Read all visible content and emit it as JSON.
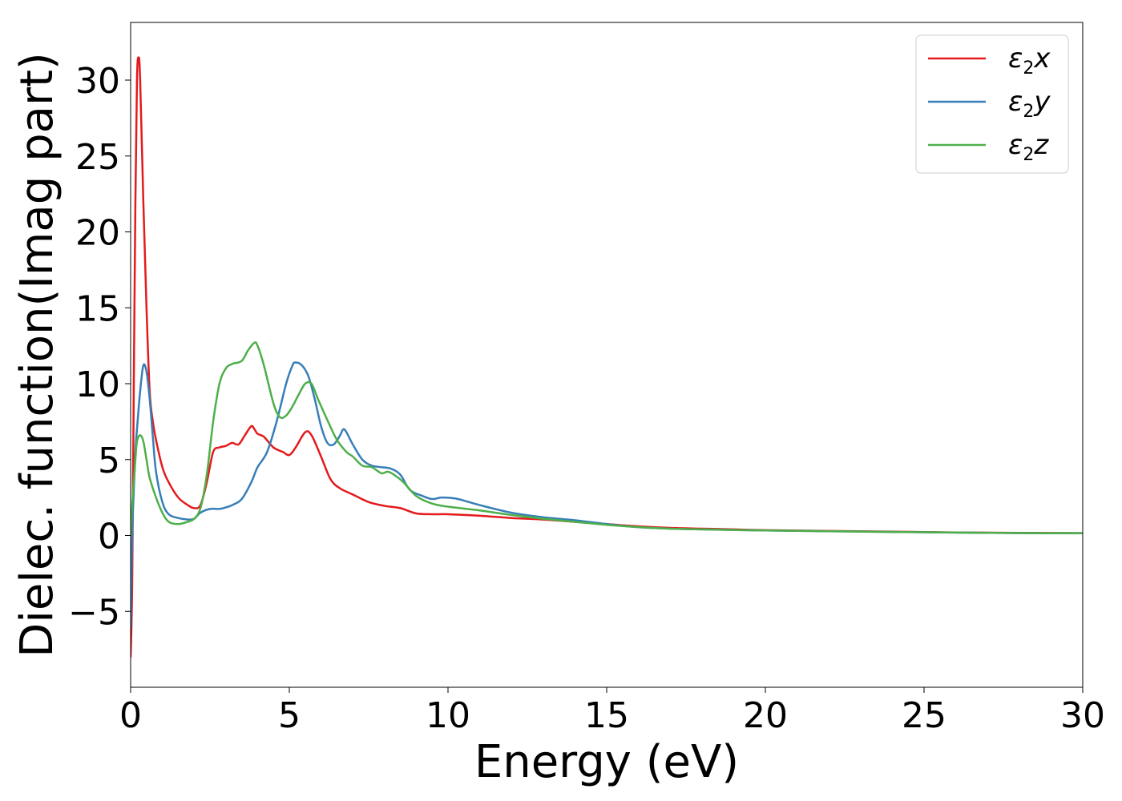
{
  "chart_data": {
    "type": "line",
    "title": "",
    "xlabel": "Energy (eV)",
    "ylabel": "Dielec. function(Imag part)",
    "xlim": [
      0,
      30
    ],
    "ylim": [
      -10,
      33.8
    ],
    "xticks": [
      0,
      5,
      10,
      15,
      20,
      25,
      30
    ],
    "xtick_labels": [
      "0",
      "5",
      "10",
      "15",
      "20",
      "25",
      "30"
    ],
    "yticks": [
      -5,
      0,
      5,
      10,
      15,
      20,
      25,
      30
    ],
    "ytick_labels": [
      "−5",
      "0",
      "5",
      "10",
      "15",
      "20",
      "25",
      "30"
    ],
    "grid": false,
    "legend_position": "top-right",
    "series": [
      {
        "name": "ε2x",
        "legend_base": "ε",
        "legend_sub": "2",
        "legend_var": "x",
        "color": "#e41a1c",
        "x": [
          0,
          0.05,
          0.1,
          0.15,
          0.2,
          0.25,
          0.3,
          0.4,
          0.5,
          0.6,
          0.7,
          0.8,
          1.0,
          1.2,
          1.5,
          1.8,
          2.0,
          2.2,
          2.4,
          2.6,
          2.8,
          3.0,
          3.2,
          3.4,
          3.6,
          3.8,
          3.9,
          4.0,
          4.2,
          4.5,
          4.8,
          5.0,
          5.2,
          5.5,
          5.7,
          6.0,
          6.3,
          6.6,
          7.0,
          7.5,
          8.0,
          8.5,
          9.0,
          9.5,
          10,
          11,
          12,
          13,
          14,
          15,
          16,
          17,
          18,
          19,
          20,
          22,
          24,
          26,
          28,
          30
        ],
        "y": [
          -8,
          -3,
          10,
          22,
          30,
          31.5,
          30,
          22,
          15,
          9.5,
          7.5,
          6.3,
          4.5,
          3.5,
          2.5,
          2.0,
          1.8,
          2.0,
          3.5,
          5.5,
          5.8,
          5.9,
          6.1,
          6.0,
          6.6,
          7.2,
          7.0,
          6.7,
          6.5,
          5.8,
          5.5,
          5.3,
          5.8,
          6.8,
          6.6,
          5.2,
          3.7,
          3.1,
          2.7,
          2.2,
          1.95,
          1.8,
          1.45,
          1.4,
          1.4,
          1.3,
          1.15,
          1.05,
          0.9,
          0.75,
          0.6,
          0.5,
          0.45,
          0.4,
          0.35,
          0.3,
          0.25,
          0.2,
          0.17,
          0.15
        ]
      },
      {
        "name": "ε2y",
        "legend_base": "ε",
        "legend_sub": "2",
        "legend_var": "y",
        "color": "#377eb8",
        "x": [
          0,
          0.05,
          0.1,
          0.15,
          0.2,
          0.3,
          0.4,
          0.5,
          0.6,
          0.7,
          0.8,
          1.0,
          1.2,
          1.5,
          1.8,
          2.0,
          2.2,
          2.5,
          2.8,
          3.0,
          3.2,
          3.5,
          3.8,
          4.0,
          4.3,
          4.6,
          4.9,
          5.1,
          5.2,
          5.4,
          5.6,
          5.8,
          6.0,
          6.2,
          6.4,
          6.6,
          6.7,
          6.8,
          7.0,
          7.3,
          7.6,
          7.9,
          8.2,
          8.5,
          8.8,
          9.2,
          9.5,
          9.8,
          10.2,
          10.5,
          11,
          12,
          13,
          14,
          15,
          16,
          17,
          18,
          20,
          22,
          24,
          26,
          28,
          30
        ],
        "y": [
          -6,
          0,
          3,
          5.5,
          7,
          9.5,
          11.2,
          10.8,
          9,
          6.5,
          4.2,
          2.2,
          1.4,
          1.15,
          1.05,
          1.1,
          1.5,
          1.75,
          1.75,
          1.85,
          2.0,
          2.4,
          3.5,
          4.5,
          5.5,
          7.5,
          10,
          11.2,
          11.4,
          11.2,
          10.5,
          9.0,
          7.2,
          6.1,
          6.0,
          6.6,
          7.0,
          6.8,
          6.0,
          5.0,
          4.6,
          4.5,
          4.4,
          4.0,
          3.0,
          2.6,
          2.4,
          2.5,
          2.45,
          2.3,
          2.0,
          1.5,
          1.2,
          1.0,
          0.75,
          0.55,
          0.45,
          0.4,
          0.33,
          0.28,
          0.23,
          0.19,
          0.16,
          0.15
        ]
      },
      {
        "name": "ε2z",
        "legend_base": "ε",
        "legend_sub": "2",
        "legend_var": "z",
        "color": "#4daf4a",
        "x": [
          0,
          0.05,
          0.1,
          0.15,
          0.2,
          0.3,
          0.4,
          0.5,
          0.6,
          0.8,
          1.0,
          1.2,
          1.5,
          1.8,
          2.0,
          2.2,
          2.4,
          2.6,
          2.8,
          3.0,
          3.2,
          3.5,
          3.7,
          3.9,
          4.0,
          4.2,
          4.5,
          4.7,
          4.9,
          5.1,
          5.3,
          5.5,
          5.7,
          5.9,
          6.2,
          6.5,
          6.8,
          7.0,
          7.3,
          7.6,
          7.9,
          8.1,
          8.3,
          8.6,
          9.0,
          9.5,
          10,
          11,
          12,
          13,
          14,
          15,
          16,
          17,
          18,
          20,
          22,
          24,
          26,
          28,
          30
        ],
        "y": [
          0,
          2,
          3.5,
          5,
          6.2,
          6.6,
          6.2,
          5.0,
          3.8,
          2.5,
          1.5,
          0.9,
          0.75,
          0.9,
          1.1,
          1.8,
          4.0,
          7.5,
          10.0,
          11.0,
          11.3,
          11.5,
          12.2,
          12.7,
          12.5,
          11.2,
          8.7,
          7.8,
          7.9,
          8.5,
          9.3,
          10.0,
          10.0,
          9.0,
          7.6,
          6.3,
          5.5,
          5.2,
          4.6,
          4.5,
          4.1,
          4.2,
          4.0,
          3.5,
          2.6,
          2.1,
          1.9,
          1.65,
          1.35,
          1.1,
          0.9,
          0.7,
          0.55,
          0.45,
          0.4,
          0.33,
          0.28,
          0.23,
          0.19,
          0.16,
          0.15
        ]
      }
    ]
  }
}
